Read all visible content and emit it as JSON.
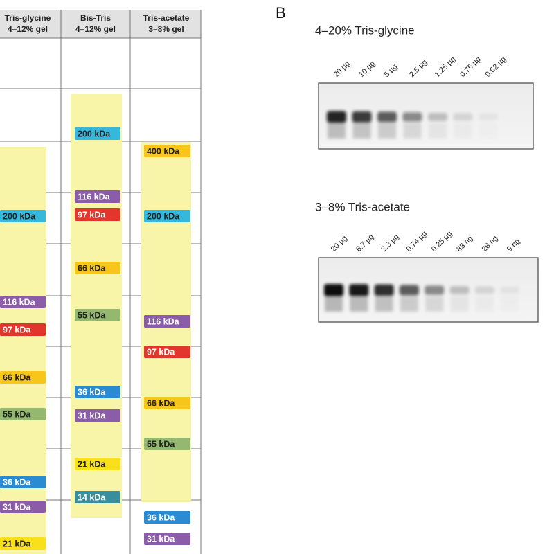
{
  "panel_a": {
    "columns": [
      {
        "header": [
          "Tris-glycine",
          "4–12% gel"
        ],
        "bands": [
          {
            "label": "200 kDa",
            "color": "#35b8dc"
          },
          {
            "label": "116 kDa",
            "color": "#8b5ca8"
          },
          {
            "label": "97 kDa",
            "color": "#e2362d"
          },
          {
            "label": "66 kDa",
            "color": "#f8c61a"
          },
          {
            "label": "55 kDa",
            "color": "#94b870"
          },
          {
            "label": "36 kDa",
            "color": "#2b8bd2"
          },
          {
            "label": "31 kDa",
            "color": "#8b5ca8"
          },
          {
            "label": "21 kDa",
            "color": "#f8e01a"
          }
        ]
      },
      {
        "header": [
          "Bis-Tris",
          "4–12% gel"
        ],
        "bands": [
          {
            "label": "200 kDa",
            "color": "#35b8dc"
          },
          {
            "label": "116 kDa",
            "color": "#8b5ca8"
          },
          {
            "label": "97 kDa",
            "color": "#e2362d"
          },
          {
            "label": "66 kDa",
            "color": "#f8c61a"
          },
          {
            "label": "55 kDa",
            "color": "#94b870"
          },
          {
            "label": "36 kDa",
            "color": "#2b8bd2"
          },
          {
            "label": "31 kDa",
            "color": "#8b5ca8"
          },
          {
            "label": "21 kDa",
            "color": "#f8e01a"
          },
          {
            "label": "14 kDa",
            "color": "#3a8e9c"
          }
        ]
      },
      {
        "header": [
          "Tris-acetate",
          "3–8% gel"
        ],
        "bands": [
          {
            "label": "400 kDa",
            "color": "#f8c61a"
          },
          {
            "label": "200 kDa",
            "color": "#35b8dc"
          },
          {
            "label": "116 kDa",
            "color": "#8b5ca8"
          },
          {
            "label": "97 kDa",
            "color": "#e2362d"
          },
          {
            "label": "66 kDa",
            "color": "#f8c61a"
          },
          {
            "label": "55 kDa",
            "color": "#94b870"
          },
          {
            "label": "36 kDa",
            "color": "#2b8bd2"
          },
          {
            "label": "31 kDa",
            "color": "#8b5ca8"
          }
        ]
      }
    ]
  },
  "panel_b": {
    "label": "B",
    "gels": [
      {
        "title": "4–20% Tris-glycine",
        "lanes": [
          "20 µg",
          "10 µg",
          "5 µg",
          "2.5 µg",
          "1.25 µg",
          "0.75 µg",
          "0.62 µg"
        ]
      },
      {
        "title": "3–8% Tris-acetate",
        "lanes": [
          "20 µg",
          "6.7 µg",
          "2.3 µg",
          "0.74 µg",
          "0.25 µg",
          "83 ng",
          "28 ng",
          "9 ng"
        ]
      }
    ]
  }
}
